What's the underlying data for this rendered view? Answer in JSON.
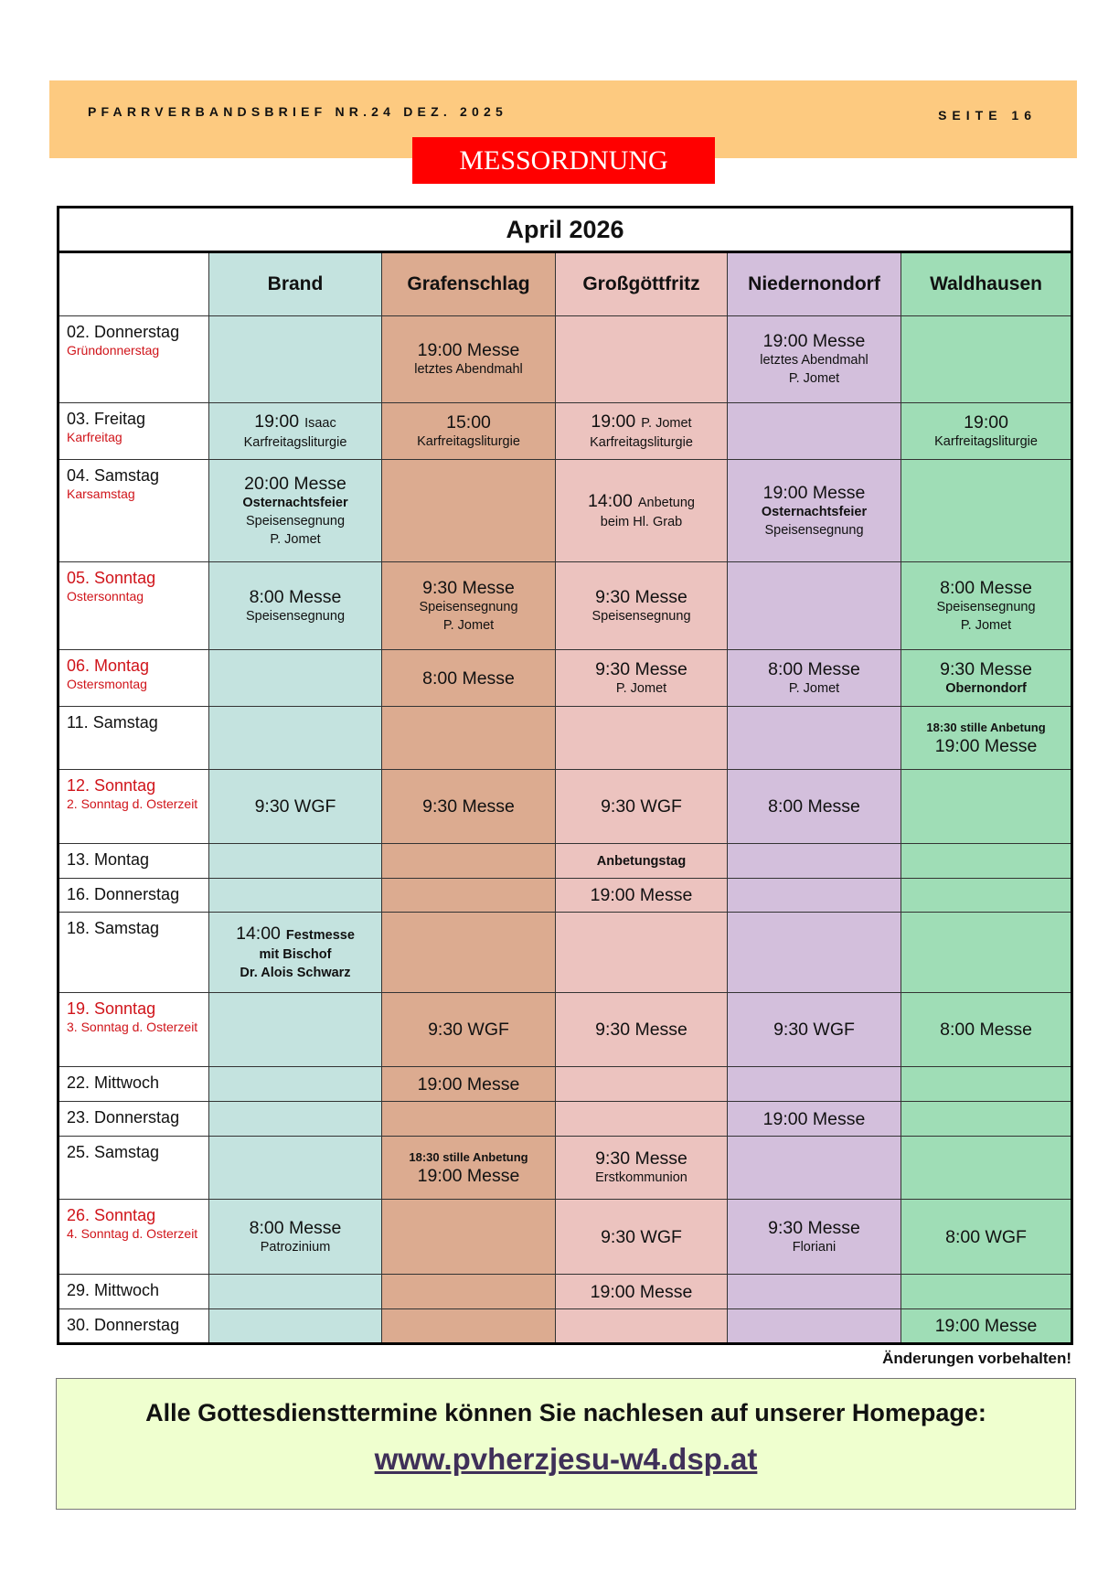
{
  "header": {
    "publication": "PFARRVERBANDSBRIEF NR.24 DEZ. 2025",
    "page": "SEITE  16"
  },
  "section_title": "MESSORDNUNG",
  "table": {
    "title": "April 2026",
    "columns": [
      {
        "name": "Brand",
        "color": "#c4e3df"
      },
      {
        "name": "Grafenschlag",
        "color": "#dcab90"
      },
      {
        "name": "Großgöttfritz",
        "color": "#ecc3bf"
      },
      {
        "name": "Niedernondorf",
        "color": "#d3bfdc"
      },
      {
        "name": "Waldhausen",
        "color": "#9fddb6"
      }
    ],
    "rows": [
      {
        "date": "02. Donnerstag",
        "feast": "Gründonnerstag",
        "red": false,
        "cells": [
          [],
          [
            {
              "text": "19:00 Messe",
              "style": "big"
            },
            {
              "text": "letztes Abendmahl",
              "style": "small"
            }
          ],
          [],
          [
            {
              "text": "19:00 Messe",
              "style": "big"
            },
            {
              "text": "letztes Abendmahl",
              "style": "small"
            },
            {
              "text": "P. Jomet",
              "style": "small"
            }
          ],
          []
        ]
      },
      {
        "date": "03. Freitag",
        "feast": "Karfreitag",
        "red": false,
        "cells": [
          [
            {
              "text": "19:00",
              "style": "big",
              "suffix": "Isaac"
            },
            {
              "text": "Karfreitagsliturgie",
              "style": "small"
            }
          ],
          [
            {
              "text": "15:00",
              "style": "big"
            },
            {
              "text": "Karfreitagsliturgie",
              "style": "small"
            }
          ],
          [
            {
              "text": "19:00",
              "style": "big",
              "suffix": "P. Jomet"
            },
            {
              "text": "Karfreitagsliturgie",
              "style": "small"
            }
          ],
          [],
          [
            {
              "text": "19:00",
              "style": "big"
            },
            {
              "text": "Karfreitagsliturgie",
              "style": "small"
            }
          ]
        ]
      },
      {
        "date": "04. Samstag",
        "feast": "Karsamstag",
        "red": false,
        "cells": [
          [
            {
              "text": "20:00 Messe",
              "style": "big"
            },
            {
              "text": "Osternachtsfeier",
              "style": "bold"
            },
            {
              "text": "Speisensegnung",
              "style": "small"
            },
            {
              "text": "P. Jomet",
              "style": "small"
            }
          ],
          [],
          [
            {
              "text": "14:00",
              "style": "big",
              "suffix": "Anbetung"
            },
            {
              "text": "beim Hl. Grab",
              "style": "small"
            }
          ],
          [
            {
              "text": "19:00 Messe",
              "style": "big"
            },
            {
              "text": "Osternachtsfeier",
              "style": "bold"
            },
            {
              "text": "Speisensegnung",
              "style": "small"
            }
          ],
          []
        ]
      },
      {
        "date": "05. Sonntag",
        "feast": "Ostersonntag",
        "red": true,
        "cells": [
          [
            {
              "text": "8:00 Messe",
              "style": "big"
            },
            {
              "text": "Speisensegnung",
              "style": "small"
            }
          ],
          [
            {
              "text": "9:30 Messe",
              "style": "big"
            },
            {
              "text": "Speisensegnung",
              "style": "small"
            },
            {
              "text": "P. Jomet",
              "style": "small"
            }
          ],
          [
            {
              "text": "9:30 Messe",
              "style": "big"
            },
            {
              "text": "Speisensegnung",
              "style": "small"
            }
          ],
          [],
          [
            {
              "text": "8:00 Messe",
              "style": "big"
            },
            {
              "text": "Speisensegnung",
              "style": "small"
            },
            {
              "text": "P. Jomet",
              "style": "small"
            }
          ]
        ]
      },
      {
        "date": "06. Montag",
        "feast": "Ostersmontag",
        "red": true,
        "cells": [
          [],
          [
            {
              "text": "8:00 Messe",
              "style": "big"
            }
          ],
          [
            {
              "text": "9:30 Messe",
              "style": "big"
            },
            {
              "text": "P. Jomet",
              "style": "small"
            }
          ],
          [
            {
              "text": "8:00 Messe",
              "style": "big"
            },
            {
              "text": "P. Jomet",
              "style": "small"
            }
          ],
          [
            {
              "text": "9:30 Messe",
              "style": "big"
            },
            {
              "text": "Obernondorf",
              "style": "bold"
            }
          ]
        ]
      },
      {
        "date": "11. Samstag",
        "feast": "",
        "red": false,
        "cells": [
          [],
          [],
          [],
          [],
          [
            {
              "text": "18:30 stille Anbetung",
              "style": "boldtiny"
            },
            {
              "text": "19:00 Messe",
              "style": "big"
            }
          ]
        ]
      },
      {
        "date": "12. Sonntag",
        "feast": "2. Sonntag d. Osterzeit",
        "red": true,
        "cells": [
          [
            {
              "text": "9:30 WGF",
              "style": "big"
            }
          ],
          [
            {
              "text": "9:30 Messe",
              "style": "big"
            }
          ],
          [
            {
              "text": "9:30 WGF",
              "style": "big"
            }
          ],
          [
            {
              "text": "8:00 Messe",
              "style": "big"
            }
          ],
          []
        ]
      },
      {
        "date": "13. Montag",
        "feast": "",
        "red": false,
        "cells": [
          [],
          [],
          [
            {
              "text": "Anbetungstag",
              "style": "bold"
            }
          ],
          [],
          []
        ]
      },
      {
        "date": "16. Donnerstag",
        "feast": "",
        "red": false,
        "cells": [
          [],
          [],
          [
            {
              "text": "19:00 Messe",
              "style": "big"
            }
          ],
          [],
          []
        ]
      },
      {
        "date": "18. Samstag",
        "feast": "",
        "red": false,
        "cells": [
          [
            {
              "text": "14:00",
              "style": "big",
              "suffix": "Festmesse",
              "suffix_bold": true
            },
            {
              "text": "mit Bischof",
              "style": "bold"
            },
            {
              "text": "Dr. Alois Schwarz",
              "style": "bold"
            }
          ],
          [],
          [],
          [],
          []
        ]
      },
      {
        "date": "19. Sonntag",
        "feast": "3. Sonntag d. Osterzeit",
        "red": true,
        "cells": [
          [],
          [
            {
              "text": "9:30 WGF",
              "style": "big"
            }
          ],
          [
            {
              "text": "9:30 Messe",
              "style": "big"
            }
          ],
          [
            {
              "text": "9:30 WGF",
              "style": "big"
            }
          ],
          [
            {
              "text": "8:00 Messe",
              "style": "big"
            }
          ]
        ]
      },
      {
        "date": "22. Mittwoch",
        "feast": "",
        "red": false,
        "cells": [
          [],
          [
            {
              "text": "19:00 Messe",
              "style": "big"
            }
          ],
          [],
          [],
          []
        ]
      },
      {
        "date": "23. Donnerstag",
        "feast": "",
        "red": false,
        "cells": [
          [],
          [],
          [],
          [
            {
              "text": "19:00 Messe",
              "style": "big"
            }
          ],
          []
        ]
      },
      {
        "date": "25. Samstag",
        "feast": "",
        "red": false,
        "cells": [
          [],
          [
            {
              "text": "18:30 stille Anbetung",
              "style": "boldtiny"
            },
            {
              "text": "19:00 Messe",
              "style": "big"
            }
          ],
          [
            {
              "text": "9:30 Messe",
              "style": "big"
            },
            {
              "text": "Erstkommunion",
              "style": "small"
            }
          ],
          [],
          []
        ]
      },
      {
        "date": "26. Sonntag",
        "feast": "4. Sonntag d. Osterzeit",
        "red": true,
        "cells": [
          [
            {
              "text": "8:00 Messe",
              "style": "big"
            },
            {
              "text": "Patrozinium",
              "style": "small"
            }
          ],
          [],
          [
            {
              "text": "9:30 WGF",
              "style": "big"
            }
          ],
          [
            {
              "text": "9:30 Messe",
              "style": "big"
            },
            {
              "text": "Floriani",
              "style": "small"
            }
          ],
          [
            {
              "text": "8:00 WGF",
              "style": "big"
            }
          ]
        ]
      },
      {
        "date": "29. Mittwoch",
        "feast": "",
        "red": false,
        "cells": [
          [],
          [],
          [
            {
              "text": "19:00 Messe",
              "style": "big"
            }
          ],
          [],
          []
        ]
      },
      {
        "date": "30. Donnerstag",
        "feast": "",
        "red": false,
        "cells": [
          [],
          [],
          [],
          [],
          [
            {
              "text": "19:00 Messe",
              "style": "big"
            }
          ]
        ]
      }
    ]
  },
  "note": "Änderungen vorbehalten!",
  "info": {
    "text": "Alle Gottesdiensttermine können Sie nachlesen auf unserer Homepage:",
    "link": "www.pvherzjesu-w4.dsp.at"
  },
  "colors": {
    "header_band": "#fdca80",
    "title_red": "#ff0000",
    "sunday_red": "#d0141a",
    "info_bg": "#efffcf",
    "link": "#3f3059"
  }
}
